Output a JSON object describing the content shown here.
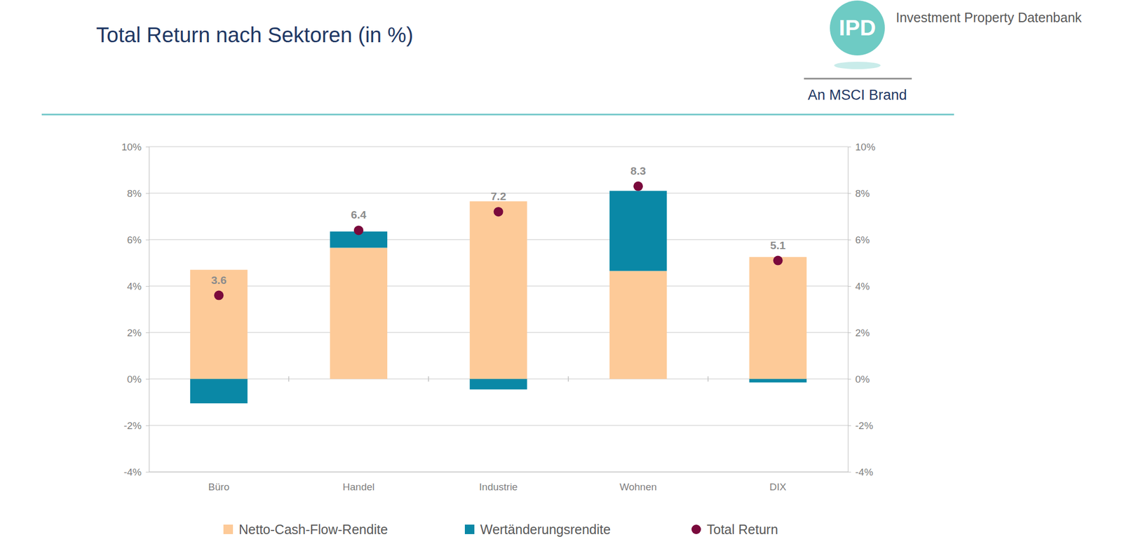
{
  "chart_data": {
    "type": "bar",
    "title": "Total Return nach Sektoren (in %)",
    "annotations": [
      "IPD",
      "Investment Property Datenbank",
      "An MSCI Brand"
    ],
    "categories": [
      "Büro",
      "Handel",
      "Industrie",
      "Wohnen",
      "DIX"
    ],
    "stacked": true,
    "grid": true,
    "legend": "bottom",
    "series": [
      {
        "name": "Netto-Cash-Flow-Rendite",
        "type": "bar",
        "color": "#fdca98",
        "values": [
          4.7,
          5.65,
          7.65,
          4.65,
          5.25
        ]
      },
      {
        "name": "Wertänderungsrendite",
        "type": "bar",
        "color": "#0a88a6",
        "values": [
          -1.05,
          0.7,
          -0.45,
          3.45,
          -0.15
        ]
      },
      {
        "name": "Total Return",
        "type": "scatter",
        "marker": "circle",
        "color": "#7a0a3c",
        "data_labels": true,
        "values": [
          3.6,
          6.4,
          7.2,
          8.3,
          5.1
        ]
      }
    ],
    "ylim": [
      -4,
      10
    ],
    "yticks": [
      {
        "value": -4,
        "label": "-4%"
      },
      {
        "value": -2,
        "label": "-2%"
      },
      {
        "value": 0,
        "label": "0%"
      },
      {
        "value": 2,
        "label": "2%"
      },
      {
        "value": 4,
        "label": "4%"
      },
      {
        "value": 6,
        "label": "6%"
      },
      {
        "value": 8,
        "label": "8%"
      },
      {
        "value": 10,
        "label": "10%"
      }
    ],
    "y2lim": [
      -4,
      10
    ],
    "y2ticks": [
      {
        "value": -4,
        "label": "-4%"
      },
      {
        "value": -2,
        "label": "-2%"
      },
      {
        "value": 0,
        "label": "0%"
      },
      {
        "value": 2,
        "label": "2%"
      },
      {
        "value": 4,
        "label": "4%"
      },
      {
        "value": 6,
        "label": "6%"
      },
      {
        "value": 8,
        "label": "8%"
      },
      {
        "value": 10,
        "label": "10%"
      }
    ]
  }
}
